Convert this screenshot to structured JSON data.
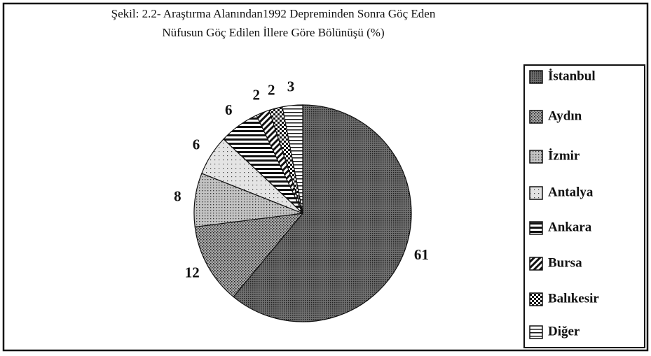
{
  "chart_data": {
    "type": "pie",
    "title": [
      "Şekil: 2.2- Araştırma Alanından1992 Depreminden  Sonra Göç Eden",
      "Nüfusun Göç Edilen İllere Göre Bölünüşü (%)"
    ],
    "categories": [
      "İstanbul",
      "Aydın",
      "İzmir",
      "Antalya",
      "Ankara",
      "Bursa",
      "Balıkesir",
      "Diğer"
    ],
    "values": [
      61,
      12,
      8,
      6,
      6,
      2,
      2,
      3
    ],
    "colors": [
      "#707070",
      "#aaaaaa",
      "#c2c2c2",
      "#e4e4e4",
      "#ffffff",
      "#ffffff",
      "#ffffff",
      "#ffffff"
    ],
    "legend": "right"
  }
}
